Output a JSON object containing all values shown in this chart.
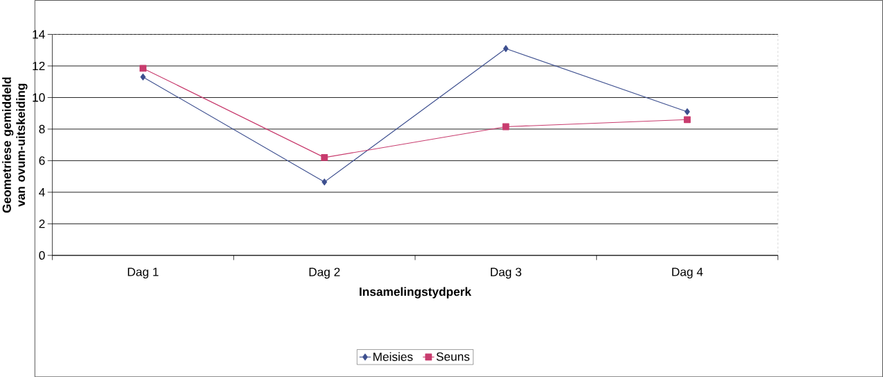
{
  "chart_data": {
    "type": "line",
    "xlabel": "Insamelingstydperk",
    "ylabel": "Geometriese gemiddeld van ovum-uitskeiding",
    "categories": [
      "Dag 1",
      "Dag 2",
      "Dag 3",
      "Dag 4"
    ],
    "series": [
      {
        "name": "Meisies",
        "color": "#3d4f8f",
        "marker": "diamond",
        "values": [
          11.3,
          4.65,
          13.1,
          9.1
        ]
      },
      {
        "name": "Seuns",
        "color": "#c83c6e",
        "marker": "square",
        "values": [
          11.85,
          6.2,
          8.15,
          8.6
        ]
      }
    ],
    "ylim": [
      0,
      14
    ],
    "yticks": [
      0,
      2,
      4,
      6,
      8,
      10,
      12,
      14
    ],
    "grid": "y",
    "legend": "bottom",
    "line_style": "solid"
  }
}
